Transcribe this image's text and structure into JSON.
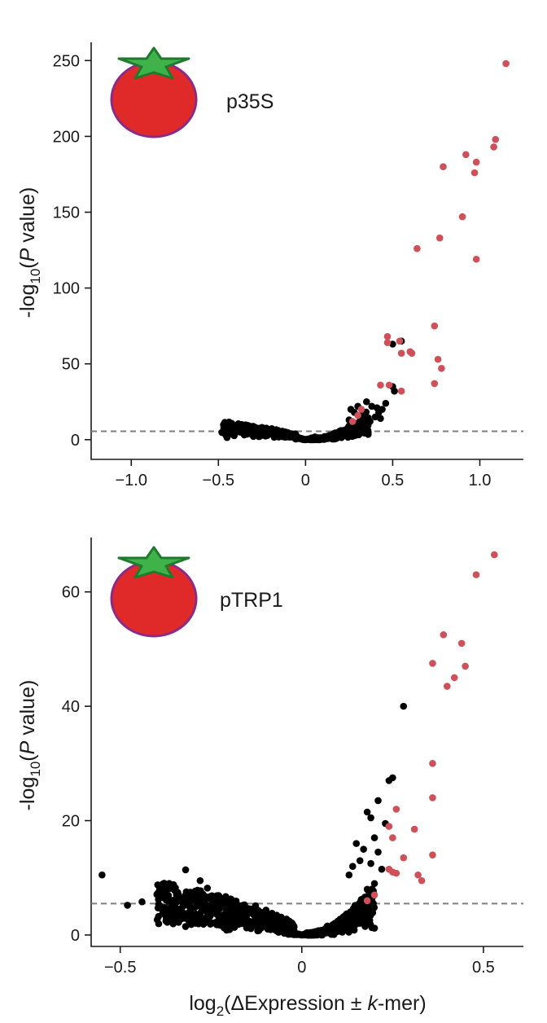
{
  "colors": {
    "sig": "#d0505a",
    "nonsig": "#000000",
    "threshold": "#7f7f7f",
    "tomato_fill": "#e02a2a",
    "tomato_outline": "#8c2a88",
    "leaf_fill": "#3fb34a",
    "leaf_outline": "#1e7a2c"
  },
  "icons": [
    "tomato-icon"
  ],
  "xlabel": {
    "pre": "log",
    "sub": "2",
    "mid": "(ΔExpression ± ",
    "ital": "k",
    "post": "-mer)"
  },
  "chart_data": [
    {
      "type": "scatter",
      "label": "p35S",
      "ylabel": {
        "pre": "-log",
        "sub": "10",
        "mid": "(",
        "ital": "P",
        "post": " value)"
      },
      "xlim": [
        -1.23,
        1.25
      ],
      "ylim": [
        -13,
        262
      ],
      "xticks": [
        -1.0,
        -0.5,
        0,
        0.5,
        1.0
      ],
      "xtick_labels": [
        "−1.0",
        "−0.5",
        "0",
        "0.5",
        "1.0"
      ],
      "yticks": [
        0,
        50,
        100,
        150,
        200,
        250
      ],
      "ytick_labels": [
        "0",
        "50",
        "100",
        "150",
        "200",
        "250"
      ],
      "threshold": 5.5,
      "sig_points": [
        [
          1.15,
          248
        ],
        [
          1.09,
          198
        ],
        [
          1.08,
          193
        ],
        [
          0.92,
          188
        ],
        [
          0.98,
          183
        ],
        [
          0.79,
          180
        ],
        [
          0.97,
          176
        ],
        [
          0.9,
          147
        ],
        [
          0.77,
          133
        ],
        [
          0.64,
          126
        ],
        [
          0.98,
          119
        ],
        [
          0.74,
          75
        ],
        [
          0.47,
          68
        ],
        [
          0.47,
          64
        ],
        [
          0.54,
          65
        ],
        [
          0.55,
          57
        ],
        [
          0.6,
          58
        ],
        [
          0.61,
          57
        ],
        [
          0.76,
          53
        ],
        [
          0.78,
          47
        ],
        [
          0.43,
          36
        ],
        [
          0.48,
          36
        ],
        [
          0.55,
          32
        ],
        [
          0.74,
          37
        ],
        [
          0.32,
          20
        ],
        [
          0.3,
          16
        ],
        [
          0.27,
          12
        ]
      ],
      "nonsig_points": [
        [
          0.5,
          63
        ],
        [
          0.55,
          65
        ],
        [
          0.5,
          35
        ],
        [
          0.51,
          32
        ],
        [
          0.38,
          22
        ],
        [
          0.41,
          21
        ],
        [
          0.44,
          20
        ],
        [
          0.46,
          24
        ],
        [
          0.35,
          25
        ],
        [
          0.3,
          22
        ],
        [
          0.28,
          18
        ],
        [
          0.32,
          16
        ],
        [
          0.26,
          20
        ],
        [
          0.4,
          15
        ],
        [
          0.43,
          14
        ],
        [
          0.37,
          12
        ],
        [
          0.42,
          18
        ],
        [
          0.27,
          11
        ],
        [
          0.25,
          13
        ],
        [
          -0.46,
          8
        ],
        [
          -0.4,
          5
        ],
        [
          -0.35,
          6
        ],
        [
          -0.3,
          3
        ]
      ],
      "nonsig_cloud": [
        {
          "from": -0.48,
          "to": -0.05,
          "n": 240,
          "ymax": 12,
          "shape": 0.6,
          "seed": 11
        },
        {
          "from": 0.02,
          "to": 0.36,
          "n": 220,
          "ymax": 19,
          "shape": 2.1,
          "seed": 23
        },
        {
          "from": -0.06,
          "to": 0.06,
          "n": 70,
          "ymax": 2,
          "shape": 1,
          "seed": 37
        }
      ]
    },
    {
      "type": "scatter",
      "label": "pTRP1",
      "ylabel": {
        "pre": "-log",
        "sub": "10",
        "mid": "(",
        "ital": "P",
        "post": " value)"
      },
      "xlim": [
        -0.58,
        0.61
      ],
      "ylim": [
        -2,
        69.5
      ],
      "xticks": [
        -0.5,
        0,
        0.5
      ],
      "xtick_labels": [
        "−0.5",
        "0",
        "0.5"
      ],
      "yticks": [
        0,
        20,
        40,
        60
      ],
      "ytick_labels": [
        "0",
        "20",
        "40",
        "60"
      ],
      "threshold": 5.5,
      "sig_points": [
        [
          0.53,
          66.5
        ],
        [
          0.48,
          63
        ],
        [
          0.39,
          52.5
        ],
        [
          0.44,
          51
        ],
        [
          0.36,
          47.5
        ],
        [
          0.45,
          47
        ],
        [
          0.42,
          45
        ],
        [
          0.4,
          43.5
        ],
        [
          0.36,
          30
        ],
        [
          0.36,
          24
        ],
        [
          0.26,
          22
        ],
        [
          0.24,
          19
        ],
        [
          0.31,
          18.5
        ],
        [
          0.25,
          17
        ],
        [
          0.28,
          13.5
        ],
        [
          0.36,
          14
        ],
        [
          0.24,
          11.5
        ],
        [
          0.25,
          11
        ],
        [
          0.26,
          10.8
        ],
        [
          0.32,
          10.5
        ],
        [
          0.33,
          9.5
        ],
        [
          0.2,
          7
        ],
        [
          0.18,
          6
        ]
      ],
      "nonsig_points": [
        [
          0.28,
          40
        ],
        [
          0.25,
          27.5
        ],
        [
          0.24,
          27
        ],
        [
          0.21,
          23.5
        ],
        [
          0.18,
          21.5
        ],
        [
          0.19,
          20.5
        ],
        [
          0.23,
          19.5
        ],
        [
          0.2,
          17
        ],
        [
          0.15,
          16
        ],
        [
          0.17,
          15
        ],
        [
          0.21,
          14.5
        ],
        [
          0.16,
          13
        ],
        [
          0.19,
          12.5
        ],
        [
          0.14,
          12
        ],
        [
          0.22,
          11.5
        ],
        [
          0.13,
          10.5
        ],
        [
          0.2,
          9
        ],
        [
          0.18,
          8
        ],
        [
          -0.55,
          10.5
        ],
        [
          -0.48,
          5.2
        ],
        [
          -0.44,
          5.8
        ],
        [
          -0.32,
          11.4
        ],
        [
          -0.28,
          9.5
        ],
        [
          -0.35,
          7.8
        ],
        [
          -0.26,
          8.2
        ],
        [
          0.2,
          1.2
        ]
      ],
      "nonsig_cloud": [
        {
          "from": -0.4,
          "to": -0.02,
          "n": 520,
          "ymax": 9.2,
          "shape": 0.55,
          "seed": 5
        },
        {
          "from": 0.01,
          "to": 0.2,
          "n": 420,
          "ymax": 9,
          "shape": 1.9,
          "seed": 19
        },
        {
          "from": -0.05,
          "to": 0.05,
          "n": 90,
          "ymax": 0.8,
          "shape": 1,
          "seed": 41
        }
      ]
    }
  ]
}
